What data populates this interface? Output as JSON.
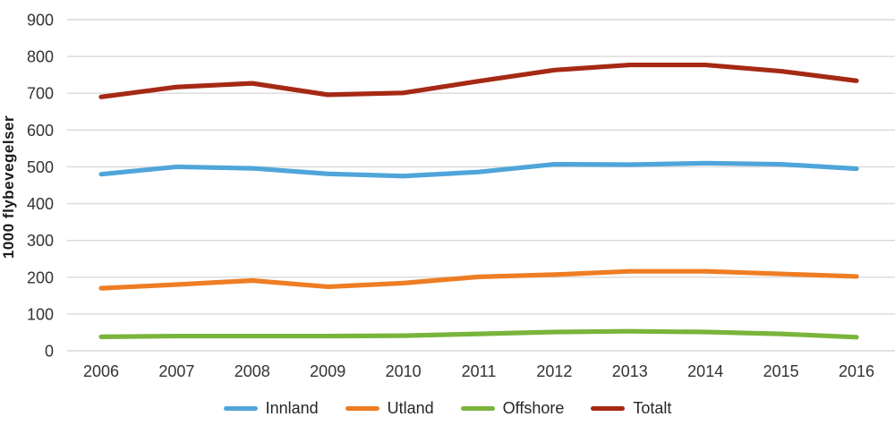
{
  "chart_data": {
    "type": "line",
    "title": "",
    "xlabel": "",
    "ylabel": "1000 flybevegelser",
    "categories": [
      "2006",
      "2007",
      "2008",
      "2009",
      "2010",
      "2011",
      "2012",
      "2013",
      "2014",
      "2015",
      "2016"
    ],
    "series": [
      {
        "name": "Innland",
        "color": "#4FA5D9",
        "values": [
          480,
          500,
          496,
          481,
          475,
          486,
          507,
          506,
          510,
          507,
          495
        ]
      },
      {
        "name": "Utland",
        "color": "#EE7D23",
        "values": [
          170,
          180,
          191,
          174,
          184,
          201,
          207,
          216,
          216,
          209,
          202
        ]
      },
      {
        "name": "Offshore",
        "color": "#79B43B",
        "values": [
          38,
          40,
          40,
          40,
          41,
          46,
          51,
          53,
          51,
          46,
          37
        ]
      },
      {
        "name": "Totalt",
        "color": "#A52914",
        "values": [
          690,
          717,
          727,
          696,
          701,
          733,
          763,
          777,
          777,
          760,
          734
        ]
      }
    ],
    "ylim": [
      0,
      900
    ],
    "y_tick_step": 100,
    "grid": "horizontal-only",
    "gridline_color": "#D9D9D9",
    "text_color": "#333333",
    "legend_position": "bottom"
  }
}
